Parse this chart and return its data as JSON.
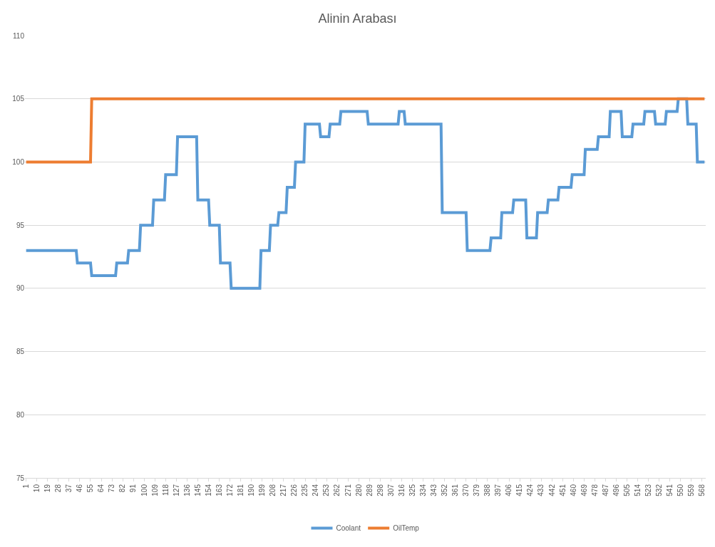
{
  "chart_data": {
    "type": "line",
    "title": "Alinin Arabası",
    "xlim": [
      0,
      571
    ],
    "xticks": [
      1,
      10,
      19,
      28,
      37,
      46,
      55,
      64,
      73,
      82,
      91,
      100,
      109,
      118,
      127,
      136,
      145,
      154,
      163,
      172,
      181,
      190,
      199,
      208,
      217,
      226,
      235,
      244,
      253,
      262,
      271,
      280,
      289,
      298,
      307,
      316,
      325,
      334,
      343,
      352,
      361,
      370,
      379,
      388,
      397,
      406,
      415,
      424,
      433,
      442,
      451,
      460,
      469,
      478,
      487,
      496,
      505,
      514,
      523,
      532,
      541,
      550,
      559,
      568
    ],
    "ylim": [
      75,
      110
    ],
    "yticks": [
      75,
      80,
      85,
      90,
      95,
      100,
      105,
      110
    ],
    "grid": "y",
    "legend": "bottom",
    "marker": "none",
    "line_style": "solid",
    "series": [
      {
        "name": "Coolant",
        "color": "#5b9bd5",
        "x": [
          1,
          43,
          44,
          55,
          56,
          76,
          77,
          86,
          87,
          96,
          97,
          107,
          108,
          117,
          118,
          127,
          128,
          144,
          145,
          154,
          155,
          163,
          164,
          172,
          173,
          197,
          198,
          205,
          206,
          212,
          213,
          219,
          220,
          226,
          227,
          234,
          235,
          247,
          248,
          255,
          256,
          264,
          265,
          287,
          288,
          313,
          314,
          318,
          319,
          349,
          350,
          370,
          371,
          390,
          391,
          399,
          400,
          409,
          410,
          420,
          421,
          429,
          430,
          438,
          439,
          447,
          448,
          458,
          459,
          469,
          470,
          480,
          481,
          490,
          491,
          500,
          501,
          509,
          510,
          519,
          520,
          528,
          529,
          537,
          538,
          547,
          548,
          555,
          556,
          563,
          564,
          570
        ],
        "values": [
          93,
          93,
          92,
          92,
          91,
          91,
          92,
          92,
          93,
          93,
          95,
          95,
          97,
          97,
          99,
          99,
          102,
          102,
          97,
          97,
          95,
          95,
          92,
          92,
          90,
          90,
          93,
          93,
          95,
          95,
          96,
          96,
          98,
          98,
          100,
          100,
          103,
          103,
          102,
          102,
          103,
          103,
          104,
          104,
          103,
          103,
          104,
          104,
          103,
          103,
          96,
          96,
          93,
          93,
          94,
          94,
          96,
          96,
          97,
          97,
          94,
          94,
          96,
          96,
          97,
          97,
          98,
          98,
          99,
          99,
          101,
          101,
          102,
          102,
          104,
          104,
          102,
          102,
          103,
          103,
          104,
          104,
          103,
          103,
          104,
          104,
          105,
          105,
          103,
          103,
          100,
          100
        ]
      },
      {
        "name": "OilTemp",
        "color": "#ed7d31",
        "x": [
          1,
          55,
          56,
          570
        ],
        "values": [
          100,
          100,
          105,
          105
        ]
      }
    ]
  }
}
